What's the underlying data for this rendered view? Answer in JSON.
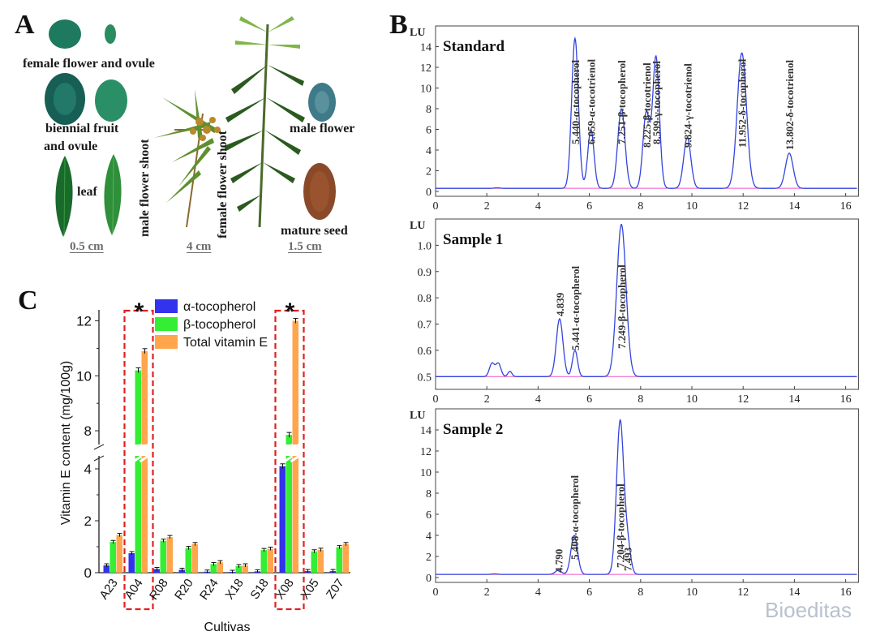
{
  "panelA": {
    "letter": "A",
    "labels": {
      "female_flower_ovule": "female flower and ovule",
      "biennial_1": "biennial fruit",
      "biennial_2": "and ovule",
      "leaf": "leaf",
      "male_flower_shoot": "male flower shoot",
      "female_flower_shoot": "female flower shoot",
      "male_flower": "male flower",
      "mature_seed": "mature seed"
    },
    "scales": [
      "0.5 cm",
      "4 cm",
      "1.5 cm"
    ]
  },
  "panelB": {
    "letter": "B",
    "y_unit": "LU",
    "x_ticks": [
      "0",
      "2",
      "4",
      "6",
      "8",
      "10",
      "12",
      "14",
      "16"
    ],
    "standard": {
      "title": "Standard",
      "y_ticks": [
        "0",
        "2",
        "4",
        "6",
        "8",
        "10",
        "12",
        "14"
      ],
      "peaks": [
        "5.440-α-tocopherol",
        "6.059-α-tocotrienol",
        "7.251-β-tocopherol",
        "8.225-β-tocotrienol",
        "8.599-γ-tocopherol",
        "9.824-γ-tocotrienol",
        "11.952-δ-tocopherol",
        "13.802-δ-tocotrienol"
      ]
    },
    "sample1": {
      "title": "Sample 1",
      "y_ticks": [
        "0.5",
        "0.6",
        "0.7",
        "0.8",
        "0.9",
        "1.0"
      ],
      "peaks": [
        "4.839",
        "5.441-α-tocopherol",
        "7.249-β-tocopherol"
      ]
    },
    "sample2": {
      "title": "Sample 2",
      "y_ticks": [
        "0",
        "2",
        "4",
        "6",
        "8",
        "10",
        "12",
        "14"
      ],
      "peaks": [
        "4.790",
        "5.408-α-tocopherol",
        "7.204-β-tocopherol",
        "7.493"
      ]
    }
  },
  "chart_data": {
    "type": "bar",
    "title": "",
    "xlabel": "Cultivas",
    "ylabel": "Vitamin E content (mg/100g)",
    "categories": [
      "A23",
      "A04",
      "R08",
      "R20",
      "R24",
      "X18",
      "S18",
      "X08",
      "X05",
      "Z07"
    ],
    "series": [
      {
        "name": "α-tocopherol",
        "color": "#3333ee",
        "values": [
          0.28,
          0.75,
          0.14,
          0.11,
          0.04,
          0.03,
          0.05,
          4.1,
          0.06,
          0.06
        ]
      },
      {
        "name": "β-tocopherol",
        "color": "#33ee33",
        "values": [
          1.18,
          10.2,
          1.23,
          0.95,
          0.33,
          0.25,
          0.87,
          7.85,
          0.82,
          0.98
        ]
      },
      {
        "name": "Total vitamin E",
        "color": "#ffa64d",
        "values": [
          1.45,
          10.9,
          1.37,
          1.1,
          0.4,
          0.28,
          0.92,
          12.0,
          0.88,
          1.1
        ]
      }
    ],
    "y_ticks_lower": [
      "0",
      "2",
      "4"
    ],
    "y_ticks_upper": [
      "8",
      "10",
      "12"
    ],
    "ylim_lower": [
      0,
      4.5
    ],
    "ylim_upper": [
      7.5,
      12.4
    ],
    "highlighted": [
      "A04",
      "X08"
    ],
    "significance_mark": "*"
  },
  "panelC": {
    "letter": "C"
  },
  "watermark": "Bioeditas"
}
